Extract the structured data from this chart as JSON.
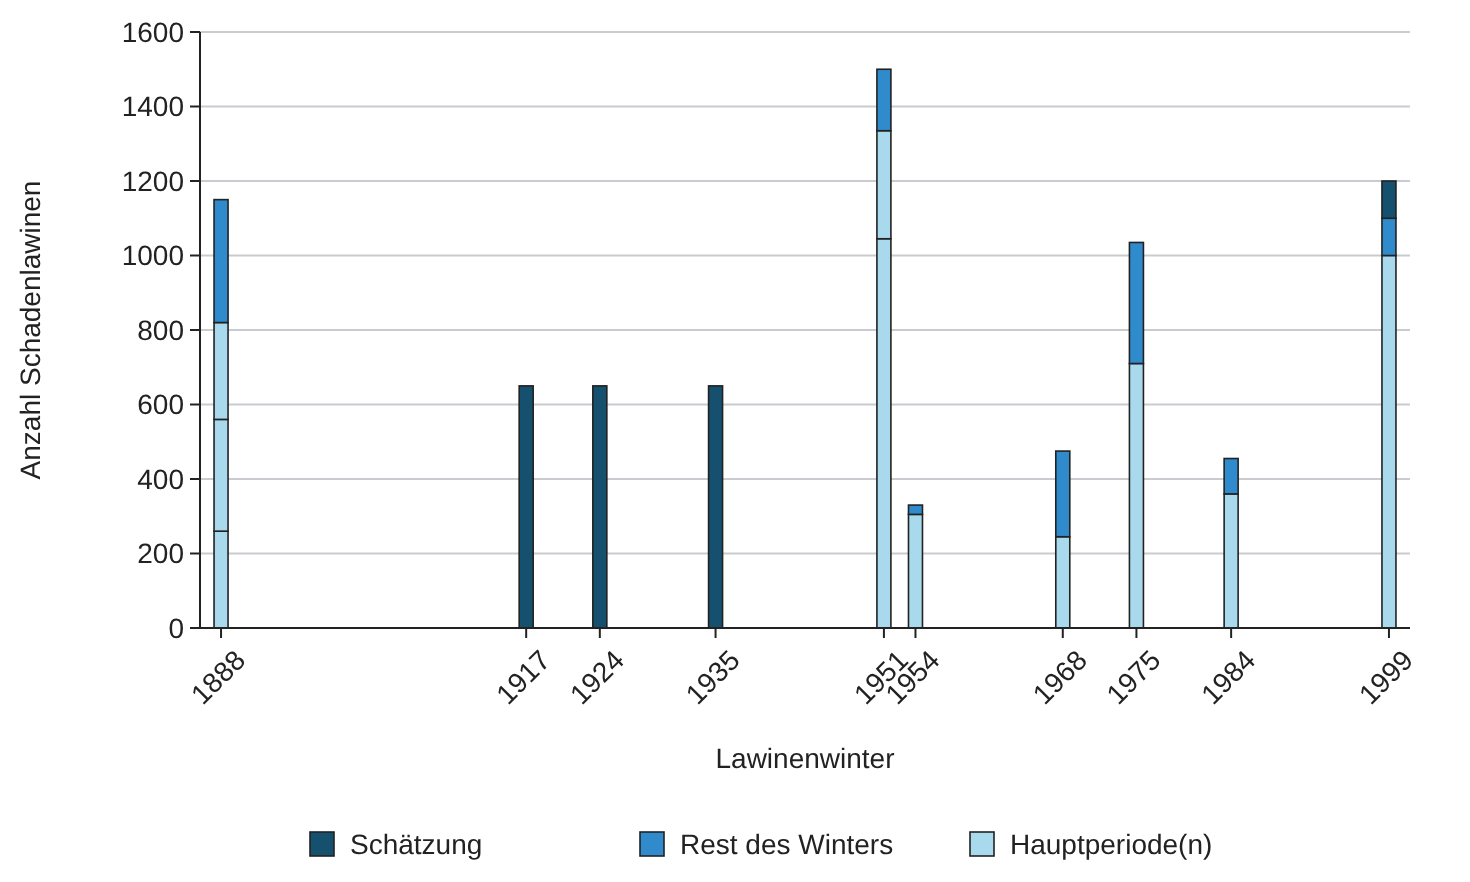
{
  "chart_data": {
    "type": "bar",
    "stacked": true,
    "xlabel": "Lawinenwinter",
    "ylabel": "Anzahl Schadenlawinen",
    "x": [
      1888,
      1917,
      1924,
      1935,
      1951,
      1954,
      1968,
      1975,
      1984,
      1999
    ],
    "xlim": [
      1886,
      2001
    ],
    "xticks": [
      1888,
      1917,
      1924,
      1935,
      1951,
      1954,
      1968,
      1975,
      1984,
      1999
    ],
    "ylim": [
      0,
      1600
    ],
    "yticks": [
      0,
      200,
      400,
      600,
      800,
      1000,
      1200,
      1400,
      1600
    ],
    "grid": "y",
    "legend": "bottom",
    "series": [
      {
        "name": "Hauptperiode(n)",
        "color": "#a9d9ec",
        "values": [
          260,
          null,
          null,
          null,
          1045,
          305,
          245,
          710,
          360,
          1000
        ]
      },
      {
        "color": "#a9d9ec",
        "values": [
          300,
          null,
          null,
          null,
          290,
          null,
          null,
          null,
          null,
          null
        ]
      },
      {
        "color": "#a9d9ec",
        "values": [
          260,
          null,
          null,
          null,
          null,
          null,
          null,
          null,
          null,
          null
        ]
      },
      {
        "name": "Rest des Winters",
        "color": "#2f8bcc",
        "values": [
          330,
          null,
          null,
          null,
          165,
          25,
          230,
          325,
          95,
          100
        ]
      },
      {
        "name": "Schätzung",
        "color": "#15506f",
        "values": [
          null,
          650,
          650,
          650,
          null,
          null,
          null,
          null,
          null,
          100
        ]
      }
    ]
  }
}
